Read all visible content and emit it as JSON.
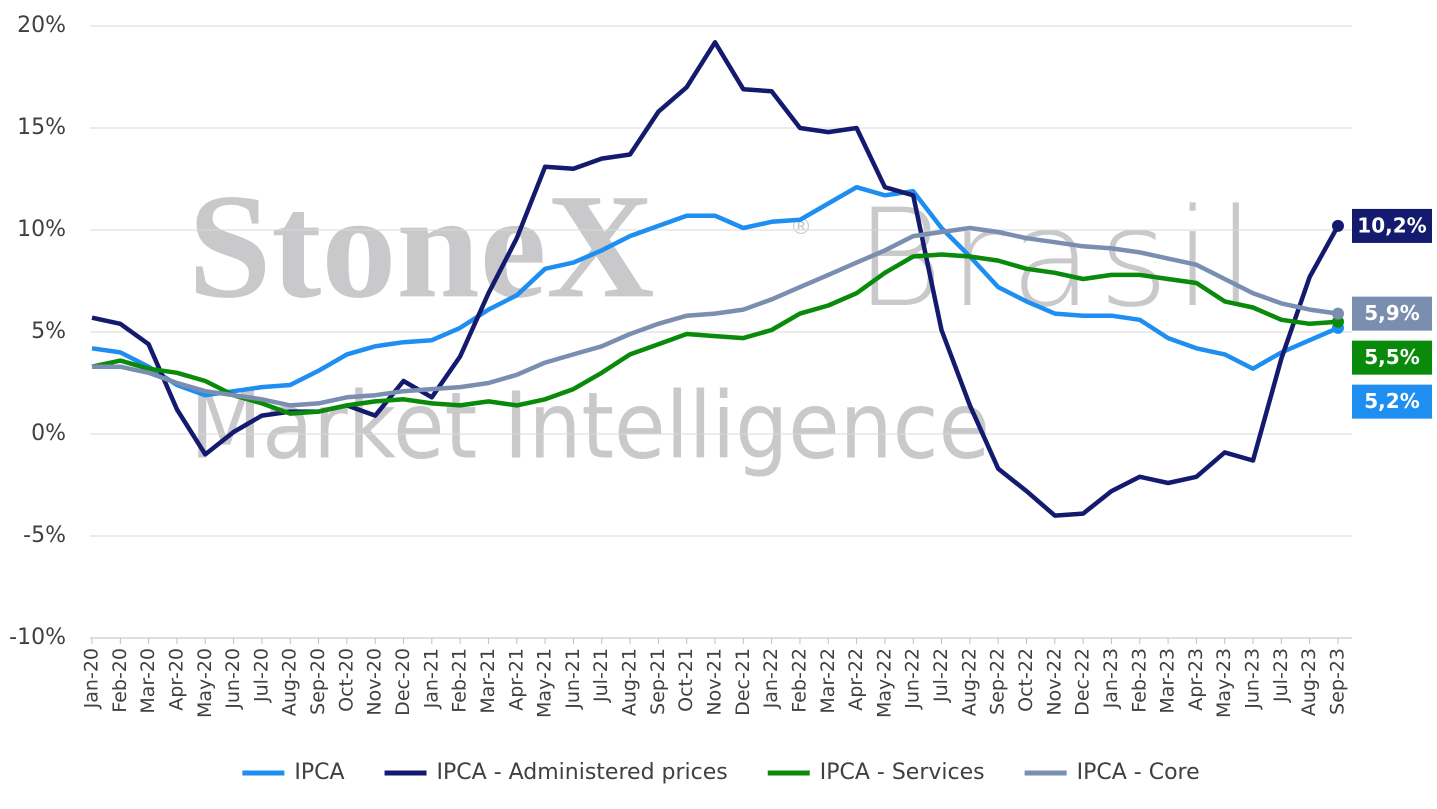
{
  "chart_data": {
    "type": "line",
    "watermark": {
      "brand": "StoneX",
      "registered": "®",
      "region": "Brasil",
      "tagline": "Market Intelligence"
    },
    "categories": [
      "Jan-20",
      "Feb-20",
      "Mar-20",
      "Apr-20",
      "May-20",
      "Jun-20",
      "Jul-20",
      "Aug-20",
      "Sep-20",
      "Oct-20",
      "Nov-20",
      "Dec-20",
      "Jan-21",
      "Feb-21",
      "Mar-21",
      "Apr-21",
      "May-21",
      "Jun-21",
      "Jul-21",
      "Aug-21",
      "Sep-21",
      "Oct-21",
      "Nov-21",
      "Dec-21",
      "Jan-22",
      "Feb-22",
      "Mar-22",
      "Apr-22",
      "May-22",
      "Jun-22",
      "Jul-22",
      "Aug-22",
      "Sep-22",
      "Oct-22",
      "Nov-22",
      "Dec-22",
      "Jan-23",
      "Feb-23",
      "Mar-23",
      "Apr-23",
      "May-23",
      "Jun-23",
      "Jul-23",
      "Aug-23",
      "Sep-23"
    ],
    "series": [
      {
        "name": "IPCA",
        "color": "#1f8ef1",
        "values": [
          4.2,
          4.0,
          3.3,
          2.4,
          1.9,
          2.1,
          2.3,
          2.4,
          3.1,
          3.9,
          4.3,
          4.5,
          4.6,
          5.2,
          6.1,
          6.8,
          8.1,
          8.4,
          9.0,
          9.7,
          10.2,
          10.7,
          10.7,
          10.1,
          10.4,
          10.5,
          11.3,
          12.1,
          11.7,
          11.9,
          10.1,
          8.7,
          7.2,
          6.5,
          5.9,
          5.8,
          5.8,
          5.6,
          4.7,
          4.2,
          3.9,
          3.2,
          4.0,
          4.6,
          5.2
        ],
        "value_labels": [
          null,
          null,
          null,
          null,
          null,
          null,
          null,
          null,
          null,
          null,
          null,
          null,
          null,
          null,
          null,
          null,
          null,
          null,
          null,
          null,
          null,
          null,
          null,
          null,
          null,
          null,
          null,
          null,
          null,
          null,
          null,
          null,
          null,
          null,
          null,
          null,
          null,
          null,
          null,
          null,
          null,
          null,
          null,
          null,
          "5,2%"
        ]
      },
      {
        "name": "IPCA - Administered prices",
        "color": "#141a6e",
        "values": [
          5.7,
          5.4,
          4.4,
          1.2,
          -1.0,
          0.1,
          0.9,
          1.1,
          1.1,
          1.4,
          0.9,
          2.6,
          1.8,
          3.8,
          6.9,
          9.6,
          13.1,
          13.0,
          13.5,
          13.7,
          15.8,
          17.0,
          19.2,
          16.9,
          16.8,
          15.0,
          14.8,
          15.0,
          12.1,
          11.7,
          5.1,
          1.4,
          -1.7,
          -2.8,
          -4.0,
          -3.9,
          -2.8,
          -2.1,
          -2.4,
          -2.1,
          -0.9,
          -1.3,
          3.7,
          7.7,
          10.2
        ],
        "value_labels": [
          null,
          null,
          null,
          null,
          null,
          null,
          null,
          null,
          null,
          null,
          null,
          null,
          null,
          null,
          null,
          null,
          null,
          null,
          null,
          null,
          null,
          null,
          null,
          null,
          null,
          null,
          null,
          null,
          null,
          null,
          null,
          null,
          null,
          null,
          null,
          null,
          null,
          null,
          null,
          null,
          null,
          null,
          null,
          null,
          "10,2%"
        ]
      },
      {
        "name": "IPCA - Services",
        "color": "#0a8a0a",
        "values": [
          3.3,
          3.6,
          3.2,
          3.0,
          2.6,
          1.9,
          1.5,
          1.0,
          1.1,
          1.4,
          1.6,
          1.7,
          1.5,
          1.4,
          1.6,
          1.4,
          1.7,
          2.2,
          3.0,
          3.9,
          4.4,
          4.9,
          4.8,
          4.7,
          5.1,
          5.9,
          6.3,
          6.9,
          7.9,
          8.7,
          8.8,
          8.7,
          8.5,
          8.1,
          7.9,
          7.6,
          7.8,
          7.8,
          7.6,
          7.4,
          6.5,
          6.2,
          5.6,
          5.4,
          5.5
        ],
        "value_labels": [
          null,
          null,
          null,
          null,
          null,
          null,
          null,
          null,
          null,
          null,
          null,
          null,
          null,
          null,
          null,
          null,
          null,
          null,
          null,
          null,
          null,
          null,
          null,
          null,
          null,
          null,
          null,
          null,
          null,
          null,
          null,
          null,
          null,
          null,
          null,
          null,
          null,
          null,
          null,
          null,
          null,
          null,
          null,
          null,
          "5,5%"
        ]
      },
      {
        "name": "IPCA - Core",
        "color": "#7a8eb0",
        "values": [
          3.3,
          3.3,
          3.0,
          2.5,
          2.1,
          1.9,
          1.7,
          1.4,
          1.5,
          1.8,
          1.9,
          2.1,
          2.2,
          2.3,
          2.5,
          2.9,
          3.5,
          3.9,
          4.3,
          4.9,
          5.4,
          5.8,
          5.9,
          6.1,
          6.6,
          7.2,
          7.8,
          8.4,
          9.0,
          9.7,
          9.9,
          10.1,
          9.9,
          9.6,
          9.4,
          9.2,
          9.1,
          8.9,
          8.6,
          8.3,
          7.6,
          6.9,
          6.4,
          6.1,
          5.9
        ],
        "value_labels": [
          null,
          null,
          null,
          null,
          null,
          null,
          null,
          null,
          null,
          null,
          null,
          null,
          null,
          null,
          null,
          null,
          null,
          null,
          null,
          null,
          null,
          null,
          null,
          null,
          null,
          null,
          null,
          null,
          null,
          null,
          null,
          null,
          null,
          null,
          null,
          null,
          null,
          null,
          null,
          null,
          null,
          null,
          null,
          null,
          "5,9%"
        ]
      }
    ],
    "ylim": [
      -10,
      20
    ],
    "yticks": [
      {
        "value": -10,
        "label": "-10%"
      },
      {
        "value": -5,
        "label": "-5%"
      },
      {
        "value": 0,
        "label": "0%"
      },
      {
        "value": 5,
        "label": "5%"
      },
      {
        "value": 10,
        "label": "10%"
      },
      {
        "value": 15,
        "label": "15%"
      },
      {
        "value": 20,
        "label": "20%"
      }
    ],
    "grid": true,
    "legend": "bottom"
  }
}
